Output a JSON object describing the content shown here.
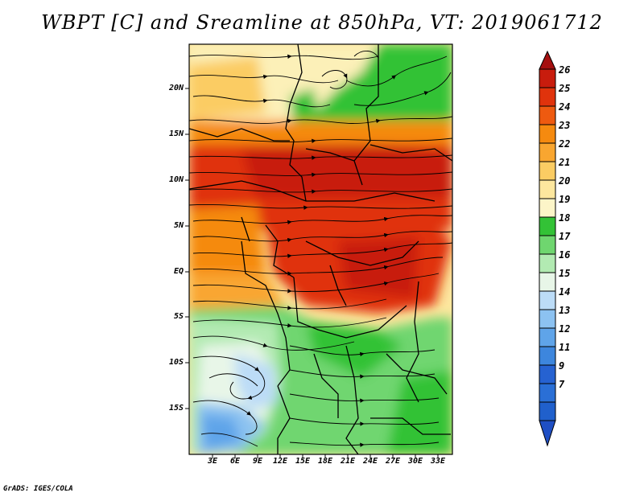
{
  "title": "WBPT [C] and Sreamline at 850hPa, VT: 2019061712",
  "credit": "GrADS: IGES/COLA",
  "map": {
    "variable": "WBPT",
    "units": "C",
    "level": "850hPa",
    "valid_time": "2019061712",
    "lat_labels": [
      "20N",
      "15N",
      "10N",
      "5N",
      "EQ",
      "5S",
      "10S",
      "15S"
    ],
    "lon_labels": [
      "3E",
      "6E",
      "9E",
      "12E",
      "15E",
      "18E",
      "21E",
      "24E",
      "27E",
      "30E",
      "33E"
    ]
  },
  "colorbar": {
    "labels": [
      "26",
      "25",
      "24",
      "23",
      "22",
      "21",
      "20",
      "19",
      "18",
      "17",
      "16",
      "15",
      "14",
      "13",
      "12",
      "11",
      "9",
      "7"
    ],
    "colors": [
      "#a50f0f",
      "#c81c0d",
      "#e0330c",
      "#ee5a10",
      "#f58a0f",
      "#f9a630",
      "#fbcc63",
      "#fde79e",
      "#fcf5c8",
      "#33c236",
      "#6fd66f",
      "#b2eab2",
      "#e8f6e8",
      "#bcdcf7",
      "#8cc2f1",
      "#5fa4e9",
      "#3d86dd",
      "#2662d1",
      "#1f4fc4"
    ]
  }
}
